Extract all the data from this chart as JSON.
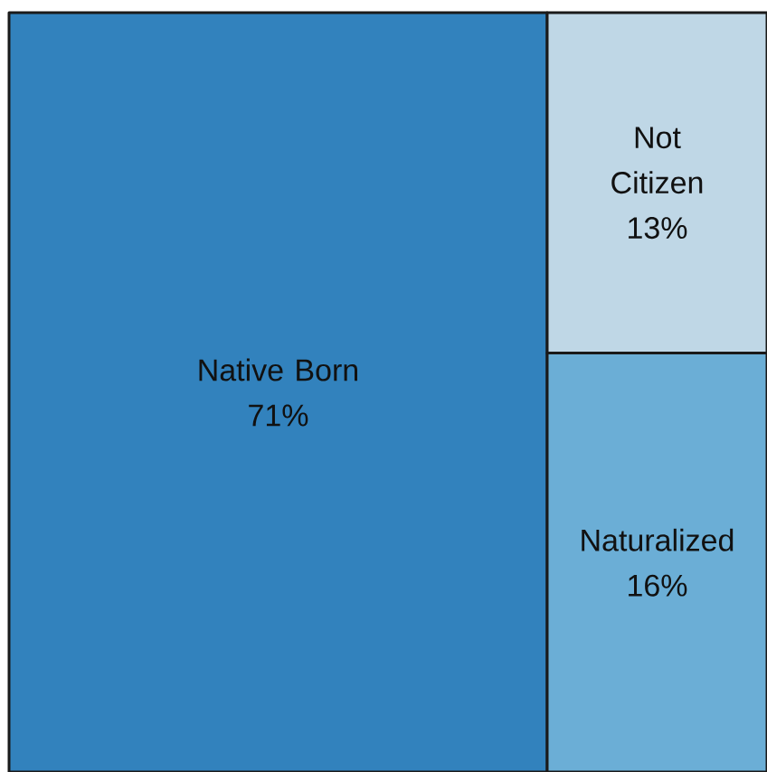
{
  "chart_data": {
    "type": "other",
    "categories": [
      "Native Born",
      "Not Citizen",
      "Naturalized"
    ],
    "values": [
      71,
      13,
      16
    ],
    "value_labels": [
      "71%",
      "13%",
      "16%"
    ],
    "colors": [
      "#3282bd",
      "#bfd7e6",
      "#6baed6"
    ]
  }
}
